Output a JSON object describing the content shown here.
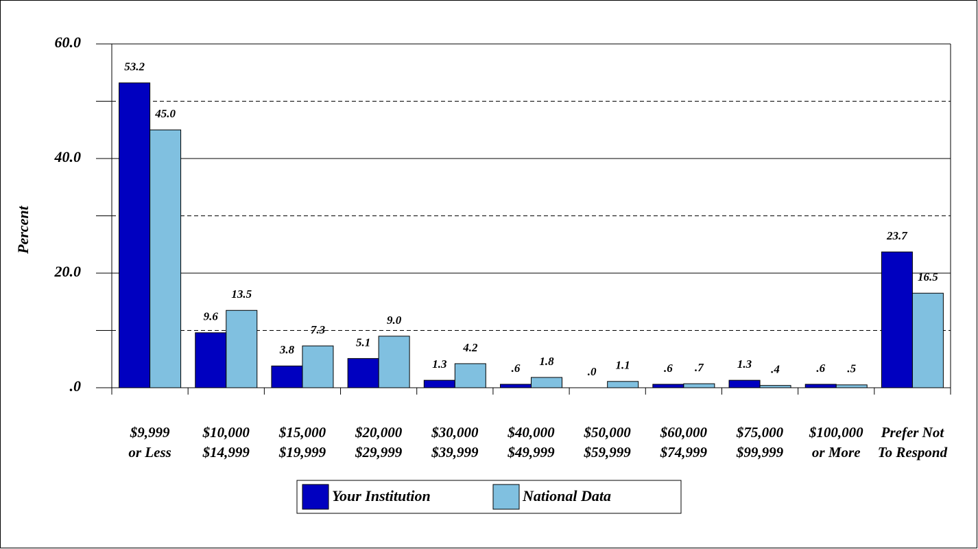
{
  "chart_data": {
    "type": "bar",
    "y_label": "Percent",
    "categories": [
      [
        "$9,999",
        "or Less"
      ],
      [
        "$10,000",
        "$14,999"
      ],
      [
        "$15,000",
        "$19,999"
      ],
      [
        "$20,000",
        "$29,999"
      ],
      [
        "$30,000",
        "$39,999"
      ],
      [
        "$40,000",
        "$49,999"
      ],
      [
        "$50,000",
        "$59,999"
      ],
      [
        "$60,000",
        "$74,999"
      ],
      [
        "$75,000",
        "$99,999"
      ],
      [
        "$100,000",
        "or More"
      ],
      [
        "Prefer Not",
        "To Respond"
      ]
    ],
    "series": [
      {
        "name": "Your Institution",
        "color": "#0000c0",
        "values": [
          53.2,
          9.6,
          3.8,
          5.1,
          1.3,
          0.6,
          0,
          0.6,
          1.3,
          0.6,
          23.7
        ],
        "value_labels": [
          "53.2",
          "9.6",
          "3.8",
          "5.1",
          "1.3",
          ".6",
          ".0",
          ".6",
          "1.3",
          ".6",
          "23.7"
        ]
      },
      {
        "name": "National Data",
        "color": "#80c0e0",
        "values": [
          45.0,
          13.5,
          7.3,
          9.0,
          4.2,
          1.8,
          1.1,
          0.7,
          0.4,
          0.5,
          16.5
        ],
        "value_labels": [
          "45.0",
          "13.5",
          "7.3",
          "9.0",
          "4.2",
          "1.8",
          "1.1",
          ".7",
          ".4",
          ".5",
          "16.5"
        ]
      }
    ],
    "ylim": [
      0,
      60
    ],
    "yticks": [
      {
        "value": 0,
        "label": ".0"
      },
      {
        "value": 20,
        "label": "20.0"
      },
      {
        "value": 40,
        "label": "40.0"
      },
      {
        "value": 60,
        "label": "60.0"
      }
    ],
    "minor_yticks": [
      10,
      30,
      50
    ],
    "grid": true,
    "legend": "bottom"
  }
}
